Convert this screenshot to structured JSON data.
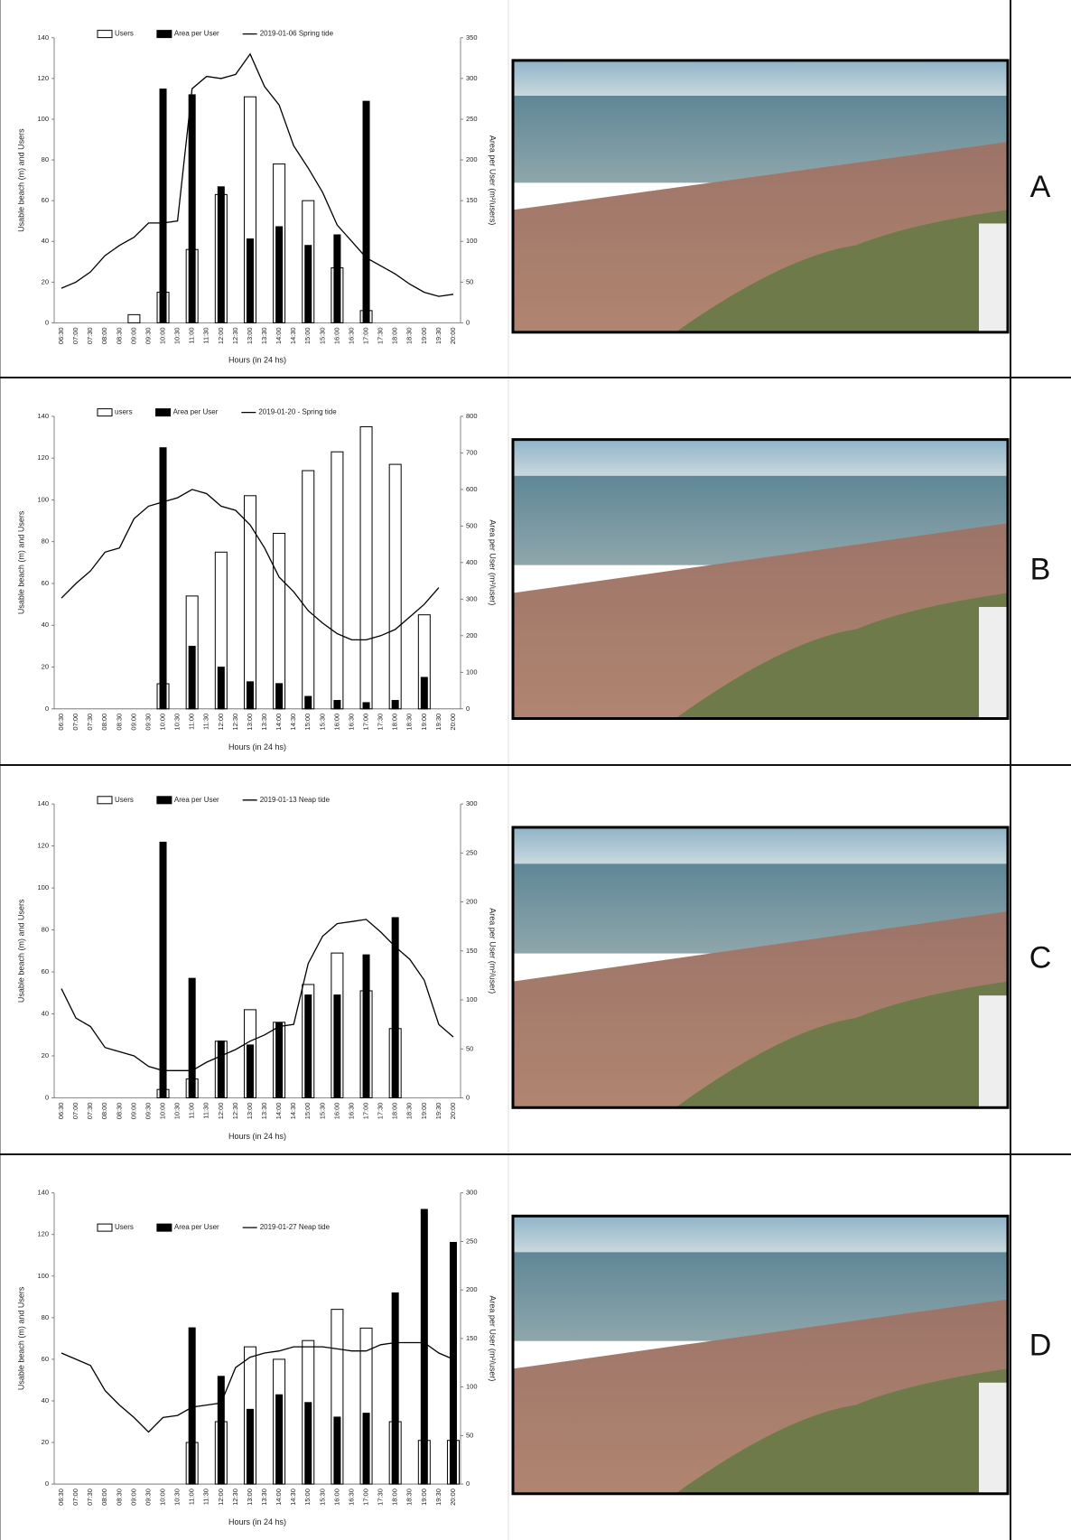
{
  "chart_data": [
    {
      "type": "combo",
      "panel": "A",
      "xlabel": "Hours (in 24 hs)",
      "ylabel": "Usable beach (m) and Users",
      "y2label": "Area per User (m²/users)",
      "legend_loc": "top",
      "categories": [
        "06:30",
        "07:00",
        "07:30",
        "08:00",
        "08:30",
        "09:00",
        "09:30",
        "10:00",
        "10:30",
        "11:00",
        "11:30",
        "12:00",
        "12:30",
        "13:00",
        "13:30",
        "14:00",
        "14:30",
        "15:00",
        "15:30",
        "16:00",
        "16:30",
        "17:00",
        "17:30",
        "18:00",
        "18:30",
        "19:00",
        "19:30",
        "20:00"
      ],
      "ylim": [
        0,
        140
      ],
      "yticks": [
        0,
        20,
        40,
        60,
        80,
        100,
        120,
        140
      ],
      "y2lim": [
        0,
        350
      ],
      "y2ticks": [
        0,
        50,
        100,
        150,
        200,
        250,
        300,
        350
      ],
      "series": [
        {
          "name": "Users",
          "type": "bar",
          "color": "#ffffff",
          "values": [
            null,
            null,
            null,
            null,
            null,
            4,
            null,
            15,
            null,
            36,
            null,
            63,
            null,
            111,
            null,
            78,
            null,
            60,
            null,
            27,
            null,
            6,
            null,
            null,
            null,
            null,
            null,
            null
          ]
        },
        {
          "name": "Area per User",
          "type": "bar",
          "axis": "y2",
          "color": "#000000",
          "values": [
            null,
            null,
            null,
            null,
            null,
            null,
            null,
            287,
            null,
            280,
            null,
            167,
            null,
            103,
            null,
            118,
            null,
            95,
            null,
            108,
            null,
            272,
            null,
            null,
            null,
            null,
            null,
            null
          ]
        },
        {
          "name": "2019-01-06 Spring tide",
          "type": "line",
          "color": "#000000",
          "values": [
            17,
            20,
            25,
            33,
            38,
            42,
            49,
            49,
            50,
            115,
            121,
            120,
            122,
            132,
            116,
            107,
            87,
            76,
            64,
            48,
            40,
            32,
            28,
            24,
            19,
            15,
            13,
            14
          ]
        }
      ]
    },
    {
      "type": "combo",
      "panel": "B",
      "xlabel": "Hours (in 24 hs)",
      "ylabel": "Usable beach (m) and Users",
      "y2label": "Area per User (m²/user)",
      "legend_loc": "top",
      "categories": [
        "06:30",
        "07:00",
        "07:30",
        "08:00",
        "08:30",
        "09:00",
        "09:30",
        "10:00",
        "10:30",
        "11:00",
        "11:30",
        "12:00",
        "12:30",
        "13:00",
        "13:30",
        "14:00",
        "14:30",
        "15:00",
        "15:30",
        "16:00",
        "16:30",
        "17:00",
        "17:30",
        "18:00",
        "18:30",
        "19:00",
        "19:30",
        "20:00"
      ],
      "ylim": [
        0,
        140
      ],
      "yticks": [
        0,
        20,
        40,
        60,
        80,
        100,
        120,
        140
      ],
      "y2lim": [
        0,
        800
      ],
      "y2ticks": [
        0,
        100,
        200,
        300,
        400,
        500,
        600,
        700,
        800
      ],
      "series": [
        {
          "name": "users",
          "type": "bar",
          "color": "#ffffff",
          "values": [
            null,
            null,
            null,
            null,
            null,
            null,
            null,
            12,
            null,
            54,
            null,
            75,
            null,
            102,
            null,
            84,
            null,
            114,
            null,
            123,
            null,
            135,
            null,
            117,
            null,
            45,
            null,
            null
          ]
        },
        {
          "name": "Area per User",
          "type": "bar",
          "axis": "y2",
          "color": "#000000",
          "values": [
            null,
            null,
            null,
            null,
            null,
            null,
            null,
            714,
            null,
            171,
            null,
            114,
            null,
            74,
            null,
            69,
            null,
            34,
            null,
            23,
            null,
            17,
            null,
            23,
            null,
            86,
            null,
            null
          ]
        },
        {
          "name": "2019-01-20 - Spring tide",
          "type": "line",
          "color": "#000000",
          "values": [
            53,
            60,
            66,
            75,
            77,
            91,
            97,
            99,
            101,
            105,
            103,
            97,
            95,
            88,
            77,
            63,
            56,
            47,
            41,
            36,
            33,
            33,
            35,
            38,
            44,
            50,
            58,
            null
          ]
        }
      ]
    },
    {
      "type": "combo",
      "panel": "C",
      "xlabel": "Hours (in 24 hs)",
      "ylabel": "Usable beach (m) and Users",
      "y2label": "Area per User (m²/user)",
      "legend_loc": "top",
      "categories": [
        "06:30",
        "07:00",
        "07:30",
        "08:00",
        "08:30",
        "09:00",
        "09:30",
        "10:00",
        "10:30",
        "11:00",
        "11:30",
        "12:00",
        "12:30",
        "13:00",
        "13:30",
        "14:00",
        "14:30",
        "15:00",
        "15:30",
        "16:00",
        "16:30",
        "17:00",
        "17:30",
        "18:00",
        "18:30",
        "19:00",
        "19:30",
        "20:00"
      ],
      "ylim": [
        0,
        140
      ],
      "yticks": [
        0,
        20,
        40,
        60,
        80,
        100,
        120,
        140
      ],
      "y2lim": [
        0,
        300
      ],
      "y2ticks": [
        0,
        50,
        100,
        150,
        200,
        250,
        300
      ],
      "series": [
        {
          "name": "Users",
          "type": "bar",
          "color": "#ffffff",
          "values": [
            null,
            null,
            null,
            null,
            null,
            null,
            null,
            4,
            null,
            9,
            null,
            27,
            null,
            42,
            null,
            36,
            null,
            54,
            null,
            69,
            null,
            51,
            null,
            33,
            null,
            null,
            null,
            null
          ]
        },
        {
          "name": "Area per User",
          "type": "bar",
          "axis": "y2",
          "color": "#000000",
          "values": [
            null,
            null,
            null,
            null,
            null,
            null,
            null,
            261,
            null,
            122,
            null,
            58,
            null,
            54,
            null,
            77,
            null,
            105,
            null,
            105,
            null,
            146,
            null,
            184,
            null,
            null,
            null,
            null
          ]
        },
        {
          "name": "2019-01-13 Neap tide",
          "type": "line",
          "color": "#000000",
          "values": [
            52,
            38,
            34,
            24,
            22,
            20,
            15,
            13,
            13,
            13,
            17,
            20,
            23,
            27,
            30,
            34,
            35,
            64,
            77,
            83,
            84,
            85,
            79,
            72,
            66,
            56,
            35,
            29
          ]
        }
      ]
    },
    {
      "type": "combo",
      "panel": "D",
      "xlabel": "Hours (in 24 hs)",
      "ylabel": "Usable beach (m) and Users",
      "y2label": "Area per User (m²/user)",
      "legend_loc": "inside",
      "categories": [
        "06:30",
        "07:00",
        "07:30",
        "08:00",
        "08:30",
        "09:00",
        "09:30",
        "10:00",
        "10:30",
        "11:00",
        "11:30",
        "12:00",
        "12:30",
        "13:00",
        "13:30",
        "14:00",
        "14:30",
        "15:00",
        "15:30",
        "16:00",
        "16:30",
        "17:00",
        "17:30",
        "18:00",
        "18:30",
        "19:00",
        "19:30",
        "20:00"
      ],
      "ylim": [
        0,
        140
      ],
      "yticks": [
        0,
        20,
        40,
        60,
        80,
        100,
        120,
        140
      ],
      "y2lim": [
        0,
        300
      ],
      "y2ticks": [
        0,
        50,
        100,
        150,
        200,
        250,
        300
      ],
      "series": [
        {
          "name": "Users",
          "type": "bar",
          "color": "#ffffff",
          "values": [
            null,
            null,
            null,
            null,
            null,
            null,
            null,
            null,
            null,
            20,
            null,
            30,
            null,
            66,
            null,
            60,
            null,
            69,
            null,
            84,
            null,
            75,
            null,
            30,
            null,
            21,
            null,
            21
          ]
        },
        {
          "name": "Area per User",
          "type": "bar",
          "axis": "y2",
          "color": "#000000",
          "values": [
            null,
            null,
            null,
            null,
            null,
            null,
            null,
            null,
            null,
            161,
            null,
            111,
            null,
            77,
            null,
            92,
            null,
            84,
            null,
            69,
            null,
            73,
            null,
            197,
            null,
            283,
            null,
            249
          ]
        },
        {
          "name": "2019-01-27 Neap tide",
          "type": "line",
          "color": "#000000",
          "values": [
            63,
            60,
            57,
            45,
            38,
            32,
            25,
            32,
            33,
            37,
            38,
            39,
            56,
            61,
            63,
            64,
            66,
            66,
            66,
            65,
            64,
            64,
            67,
            68,
            68,
            68,
            63,
            60
          ]
        }
      ]
    }
  ]
}
